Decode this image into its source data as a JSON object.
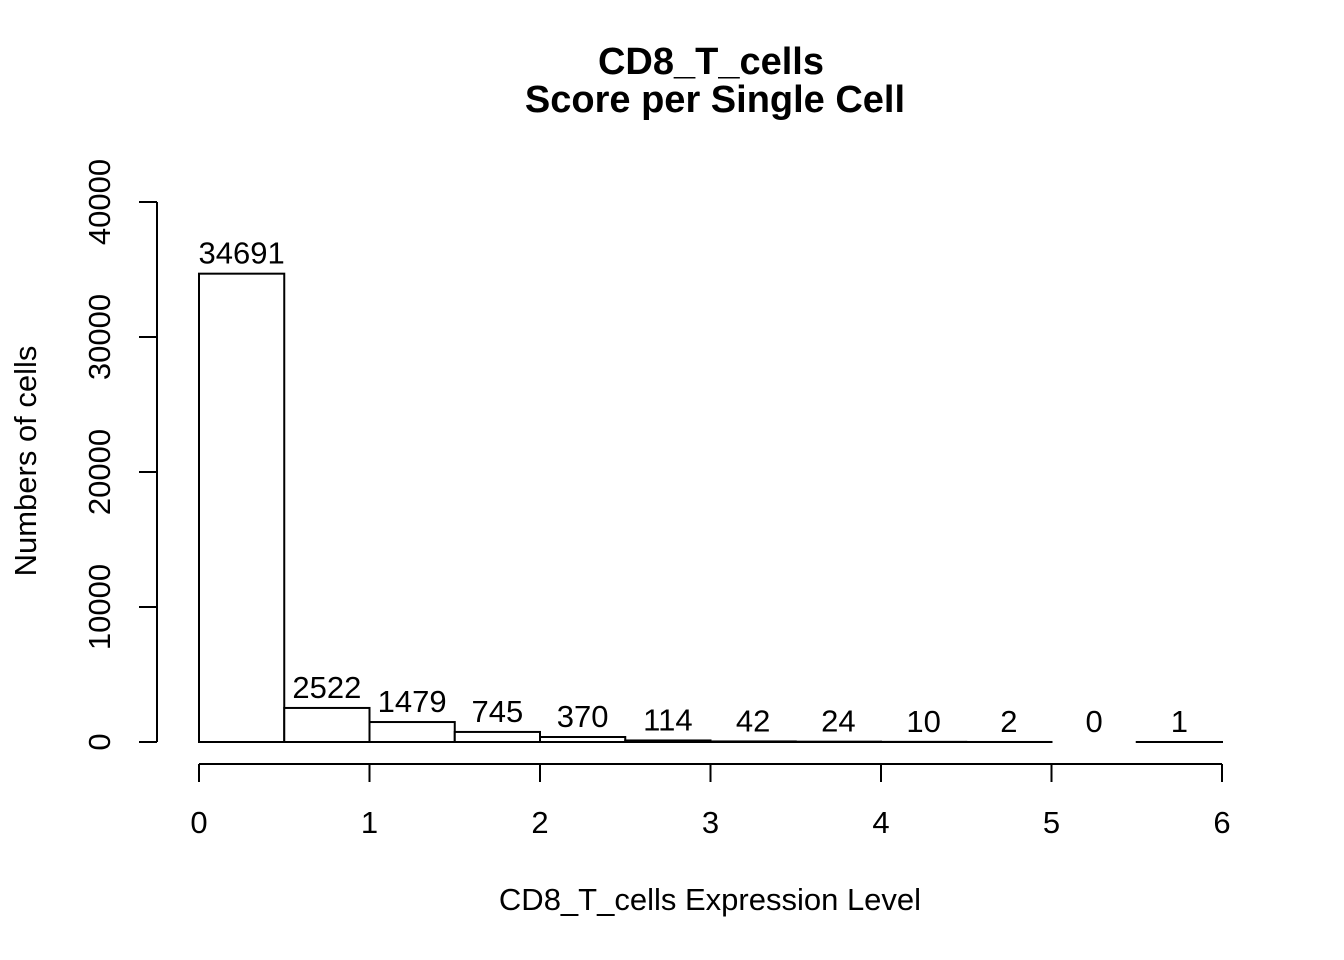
{
  "chart_data": {
    "type": "bar",
    "title": "CD8_T_cells",
    "subtitle": "Score per Single Cell",
    "xlabel": "CD8_T_cells Expression Level",
    "ylabel": "Numbers of cells",
    "bin_edges": [
      0,
      0.5,
      1,
      1.5,
      2,
      2.5,
      3,
      3.5,
      4,
      4.5,
      5,
      5.5,
      6
    ],
    "values": [
      34691,
      2522,
      1479,
      745,
      370,
      114,
      42,
      24,
      10,
      2,
      0,
      1
    ],
    "value_labels": [
      "34691",
      "2522",
      "1479",
      "745",
      "370",
      "114",
      "42",
      "24",
      "10",
      "2",
      "0",
      "1"
    ],
    "xlim": [
      0,
      6
    ],
    "ylim": [
      0,
      40000
    ],
    "xticks": [
      0,
      1,
      2,
      3,
      4,
      5,
      6
    ],
    "xtick_labels": [
      "0",
      "1",
      "2",
      "3",
      "4",
      "5",
      "6"
    ],
    "yticks": [
      0,
      10000,
      20000,
      30000,
      40000
    ],
    "ytick_labels": [
      "0",
      "10000",
      "20000",
      "30000",
      "40000"
    ],
    "grid": false,
    "colors": {
      "bar_fill": "#ffffff",
      "bar_stroke": "#000000"
    }
  }
}
